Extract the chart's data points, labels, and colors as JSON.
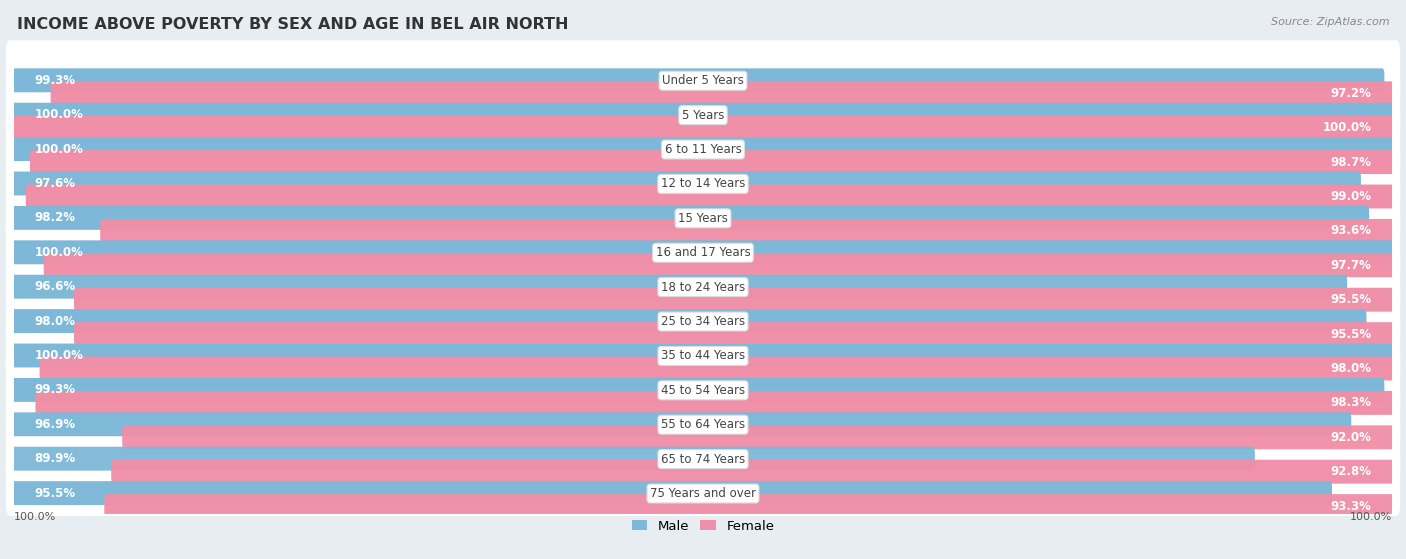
{
  "title": "INCOME ABOVE POVERTY BY SEX AND AGE IN BEL AIR NORTH",
  "source": "Source: ZipAtlas.com",
  "categories": [
    "Under 5 Years",
    "5 Years",
    "6 to 11 Years",
    "12 to 14 Years",
    "15 Years",
    "16 and 17 Years",
    "18 to 24 Years",
    "25 to 34 Years",
    "35 to 44 Years",
    "45 to 54 Years",
    "55 to 64 Years",
    "65 to 74 Years",
    "75 Years and over"
  ],
  "male": [
    99.3,
    100.0,
    100.0,
    97.6,
    98.2,
    100.0,
    96.6,
    98.0,
    100.0,
    99.3,
    96.9,
    89.9,
    95.5
  ],
  "female": [
    97.2,
    100.0,
    98.7,
    99.0,
    93.6,
    97.7,
    95.5,
    95.5,
    98.0,
    98.3,
    92.0,
    92.8,
    93.3
  ],
  "male_color": "#7db8d8",
  "female_color": "#f08fa8",
  "male_color_light": "#b8d8ec",
  "female_color_light": "#f8c4d0",
  "bg_color": "#e8edf2",
  "row_bg": "#ffffff",
  "max_val": 100.0,
  "title_fontsize": 11.5,
  "label_fontsize": 8.5,
  "category_fontsize": 8.5,
  "legend_fontsize": 9.5,
  "bottom_label": "100.0%"
}
